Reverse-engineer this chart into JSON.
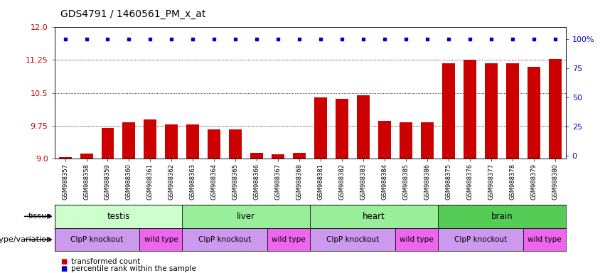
{
  "title": "GDS4791 / 1460561_PM_x_at",
  "samples": [
    "GSM988357",
    "GSM988358",
    "GSM988359",
    "GSM988360",
    "GSM988361",
    "GSM988362",
    "GSM988363",
    "GSM988364",
    "GSM988365",
    "GSM988366",
    "GSM988367",
    "GSM988368",
    "GSM988381",
    "GSM988382",
    "GSM988383",
    "GSM988384",
    "GSM988385",
    "GSM988386",
    "GSM988375",
    "GSM988376",
    "GSM988377",
    "GSM988378",
    "GSM988379",
    "GSM988380"
  ],
  "bar_values": [
    9.02,
    9.11,
    9.7,
    9.83,
    9.89,
    9.78,
    9.78,
    9.67,
    9.67,
    9.12,
    9.1,
    9.12,
    10.4,
    10.36,
    10.45,
    9.85,
    9.83,
    9.83,
    11.18,
    11.25,
    11.18,
    11.18,
    11.09,
    11.28
  ],
  "bar_color": "#cc0000",
  "dot_color": "#0000cc",
  "ylim": [
    9.0,
    12.0
  ],
  "yticks_left": [
    9.0,
    9.75,
    10.5,
    11.25,
    12.0
  ],
  "yticks_right": [
    0,
    25,
    50,
    75,
    100
  ],
  "dotted_lines": [
    9.75,
    10.5,
    11.25
  ],
  "tissue_row": [
    {
      "label": "testis",
      "start": 0,
      "end": 6,
      "color": "#ccffcc"
    },
    {
      "label": "liver",
      "start": 6,
      "end": 12,
      "color": "#99ee99"
    },
    {
      "label": "heart",
      "start": 12,
      "end": 18,
      "color": "#99ee99"
    },
    {
      "label": "brain",
      "start": 18,
      "end": 24,
      "color": "#55cc55"
    }
  ],
  "genotype_row": [
    {
      "label": "ClpP knockout",
      "start": 0,
      "end": 4,
      "color": "#cc99ee"
    },
    {
      "label": "wild type",
      "start": 4,
      "end": 6,
      "color": "#ee66ee"
    },
    {
      "label": "ClpP knockout",
      "start": 6,
      "end": 10,
      "color": "#cc99ee"
    },
    {
      "label": "wild type",
      "start": 10,
      "end": 12,
      "color": "#ee66ee"
    },
    {
      "label": "ClpP knockout",
      "start": 12,
      "end": 16,
      "color": "#cc99ee"
    },
    {
      "label": "wild type",
      "start": 16,
      "end": 18,
      "color": "#ee66ee"
    },
    {
      "label": "ClpP knockout",
      "start": 18,
      "end": 22,
      "color": "#cc99ee"
    },
    {
      "label": "wild type",
      "start": 22,
      "end": 24,
      "color": "#ee66ee"
    }
  ],
  "legend_transformed": "transformed count",
  "legend_percentile": "percentile rank within the sample",
  "background_color": "#ffffff"
}
